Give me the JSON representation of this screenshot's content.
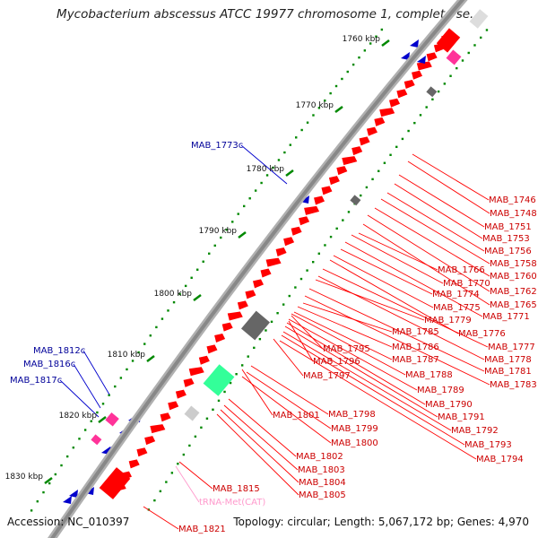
{
  "title": "Mycobacterium abscessus ATCC 19977 chromosome 1, complete se...",
  "footer": {
    "accession": "Accession: NC_010397",
    "stats": "Topology: circular; Length: 5,067,172 bp; Genes: 4,970"
  },
  "colors": {
    "forward_cds": "#ff0000",
    "reverse_cds": "#0000cc",
    "trna": "#ff99cc",
    "label_forward": "#cc0000",
    "label_reverse": "#000099",
    "backbone": "#888888",
    "gc_skew_dots": "#008800",
    "misc_grey": "#666666",
    "misc_pink": "#ff3399",
    "misc_green": "#33ff99"
  },
  "scale_marks": [
    "1760 kbp",
    "1770 kbp",
    "1780 kbp",
    "1790 kbp",
    "1800 kbp",
    "1810 kbp",
    "1820 kbp",
    "1830 kbp"
  ],
  "gene_labels": [
    {
      "name": "MAB_1746",
      "strand": "forward"
    },
    {
      "name": "MAB_1748",
      "strand": "forward"
    },
    {
      "name": "MAB_1751",
      "strand": "forward"
    },
    {
      "name": "MAB_1753",
      "strand": "forward"
    },
    {
      "name": "MAB_1756",
      "strand": "forward"
    },
    {
      "name": "MAB_1758",
      "strand": "forward"
    },
    {
      "name": "MAB_1760",
      "strand": "forward"
    },
    {
      "name": "MAB_1762",
      "strand": "forward"
    },
    {
      "name": "MAB_1765",
      "strand": "forward"
    },
    {
      "name": "MAB_1766",
      "strand": "forward"
    },
    {
      "name": "MAB_1770",
      "strand": "forward"
    },
    {
      "name": "MAB_1771",
      "strand": "forward"
    },
    {
      "name": "MAB_1774",
      "strand": "forward"
    },
    {
      "name": "MAB_1775",
      "strand": "forward"
    },
    {
      "name": "MAB_1776",
      "strand": "forward"
    },
    {
      "name": "MAB_1777",
      "strand": "forward"
    },
    {
      "name": "MAB_1778",
      "strand": "forward"
    },
    {
      "name": "MAB_1779",
      "strand": "forward"
    },
    {
      "name": "MAB_1781",
      "strand": "forward"
    },
    {
      "name": "MAB_1783",
      "strand": "forward"
    },
    {
      "name": "MAB_1785",
      "strand": "forward"
    },
    {
      "name": "MAB_1786",
      "strand": "forward"
    },
    {
      "name": "MAB_1787",
      "strand": "forward"
    },
    {
      "name": "MAB_1788",
      "strand": "forward"
    },
    {
      "name": "MAB_1789",
      "strand": "forward"
    },
    {
      "name": "MAB_1790",
      "strand": "forward"
    },
    {
      "name": "MAB_1791",
      "strand": "forward"
    },
    {
      "name": "MAB_1792",
      "strand": "forward"
    },
    {
      "name": "MAB_1793",
      "strand": "forward"
    },
    {
      "name": "MAB_1794",
      "strand": "forward"
    },
    {
      "name": "MAB_1795",
      "strand": "forward"
    },
    {
      "name": "MAB_1796",
      "strand": "forward"
    },
    {
      "name": "MAB_1797",
      "strand": "forward"
    },
    {
      "name": "MAB_1798",
      "strand": "forward"
    },
    {
      "name": "MAB_1799",
      "strand": "forward"
    },
    {
      "name": "MAB_1800",
      "strand": "forward"
    },
    {
      "name": "MAB_1801",
      "strand": "forward"
    },
    {
      "name": "MAB_1802",
      "strand": "forward"
    },
    {
      "name": "MAB_1803",
      "strand": "forward"
    },
    {
      "name": "MAB_1804",
      "strand": "forward"
    },
    {
      "name": "MAB_1805",
      "strand": "forward"
    },
    {
      "name": "MAB_1815",
      "strand": "forward"
    },
    {
      "name": "tRNA-Met(CAT)",
      "strand": "trna"
    },
    {
      "name": "MAB_1821",
      "strand": "forward"
    },
    {
      "name": "MAB_1773c",
      "strand": "reverse"
    },
    {
      "name": "MAB_1812c",
      "strand": "reverse"
    },
    {
      "name": "MAB_1816c",
      "strand": "reverse"
    },
    {
      "name": "MAB_1817c",
      "strand": "reverse"
    }
  ]
}
